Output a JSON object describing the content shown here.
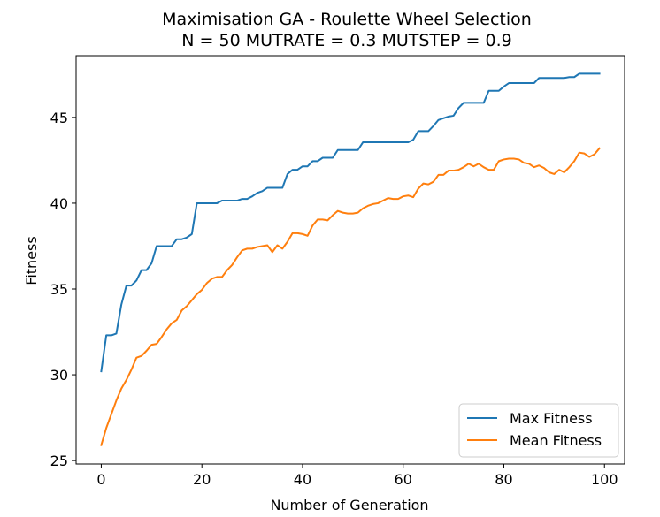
{
  "chart_data": {
    "type": "line",
    "title_line1": "Maximisation GA - Roulette Wheel Selection",
    "title_line2": "N = 50 MUTRATE = 0.3 MUTSTEP = 0.9",
    "xlabel": "Number of Generation",
    "ylabel": "Fitness",
    "xlim": [
      -5,
      104
    ],
    "ylim": [
      24.8,
      48.6
    ],
    "xticks": [
      0,
      20,
      40,
      60,
      80,
      100
    ],
    "yticks": [
      25,
      30,
      35,
      40,
      45
    ],
    "grid": false,
    "legend_position": "lower-right",
    "series": [
      {
        "name": "Max Fitness",
        "color": "#1f77b4",
        "x": [
          0,
          1,
          2,
          3,
          4,
          5,
          6,
          7,
          8,
          9,
          10,
          11,
          12,
          13,
          14,
          15,
          16,
          17,
          18,
          19,
          20,
          21,
          22,
          23,
          24,
          25,
          26,
          27,
          28,
          29,
          30,
          31,
          32,
          33,
          34,
          35,
          36,
          37,
          38,
          39,
          40,
          41,
          42,
          43,
          44,
          45,
          46,
          47,
          48,
          49,
          50,
          51,
          52,
          53,
          54,
          55,
          56,
          57,
          58,
          59,
          60,
          61,
          62,
          63,
          64,
          65,
          66,
          67,
          68,
          69,
          70,
          71,
          72,
          73,
          74,
          75,
          76,
          77,
          78,
          79,
          80,
          81,
          82,
          83,
          84,
          85,
          86,
          87,
          88,
          89,
          90,
          91,
          92,
          93,
          94,
          95,
          96,
          97,
          98,
          99
        ],
        "values": [
          30.2,
          32.3,
          32.3,
          32.4,
          34.1,
          35.2,
          35.2,
          35.5,
          36.1,
          36.1,
          36.5,
          37.5,
          37.5,
          37.5,
          37.5,
          37.9,
          37.9,
          38.0,
          38.2,
          40.0,
          40.0,
          40.0,
          40.0,
          40.0,
          40.15,
          40.15,
          40.15,
          40.15,
          40.25,
          40.25,
          40.4,
          40.6,
          40.7,
          40.9,
          40.9,
          40.9,
          40.9,
          41.7,
          41.95,
          41.95,
          42.15,
          42.15,
          42.45,
          42.45,
          42.65,
          42.65,
          42.65,
          43.1,
          43.1,
          43.1,
          43.1,
          43.1,
          43.55,
          43.55,
          43.55,
          43.55,
          43.55,
          43.55,
          43.55,
          43.55,
          43.55,
          43.55,
          43.7,
          44.2,
          44.2,
          44.2,
          44.5,
          44.85,
          44.95,
          45.05,
          45.1,
          45.55,
          45.85,
          45.85,
          45.85,
          45.85,
          45.85,
          46.55,
          46.55,
          46.55,
          46.8,
          47.0,
          47.0,
          47.0,
          47.0,
          47.0,
          47.0,
          47.3,
          47.3,
          47.3,
          47.3,
          47.3,
          47.3,
          47.35,
          47.35,
          47.55,
          47.55,
          47.55,
          47.55,
          47.55
        ]
      },
      {
        "name": "Mean Fitness",
        "color": "#ff7f0e",
        "x": [
          0,
          1,
          2,
          3,
          4,
          5,
          6,
          7,
          8,
          9,
          10,
          11,
          12,
          13,
          14,
          15,
          16,
          17,
          18,
          19,
          20,
          21,
          22,
          23,
          24,
          25,
          26,
          27,
          28,
          29,
          30,
          31,
          32,
          33,
          34,
          35,
          36,
          37,
          38,
          39,
          40,
          41,
          42,
          43,
          44,
          45,
          46,
          47,
          48,
          49,
          50,
          51,
          52,
          53,
          54,
          55,
          56,
          57,
          58,
          59,
          60,
          61,
          62,
          63,
          64,
          65,
          66,
          67,
          68,
          69,
          70,
          71,
          72,
          73,
          74,
          75,
          76,
          77,
          78,
          79,
          80,
          81,
          82,
          83,
          84,
          85,
          86,
          87,
          88,
          89,
          90,
          91,
          92,
          93,
          94,
          95,
          96,
          97,
          98,
          99
        ],
        "values": [
          25.9,
          26.9,
          27.7,
          28.5,
          29.2,
          29.7,
          30.3,
          31.0,
          31.1,
          31.4,
          31.75,
          31.8,
          32.2,
          32.65,
          33.0,
          33.2,
          33.75,
          34.0,
          34.35,
          34.7,
          34.95,
          35.35,
          35.6,
          35.7,
          35.7,
          36.1,
          36.4,
          36.85,
          37.25,
          37.35,
          37.35,
          37.45,
          37.5,
          37.55,
          37.15,
          37.55,
          37.35,
          37.75,
          38.25,
          38.25,
          38.2,
          38.1,
          38.7,
          39.05,
          39.05,
          39.0,
          39.3,
          39.55,
          39.45,
          39.4,
          39.4,
          39.45,
          39.7,
          39.85,
          39.95,
          40.0,
          40.15,
          40.3,
          40.25,
          40.25,
          40.4,
          40.45,
          40.35,
          40.85,
          41.15,
          41.1,
          41.25,
          41.65,
          41.65,
          41.9,
          41.9,
          41.95,
          42.1,
          42.3,
          42.15,
          42.3,
          42.1,
          41.95,
          41.95,
          42.45,
          42.55,
          42.6,
          42.6,
          42.55,
          42.35,
          42.3,
          42.1,
          42.2,
          42.05,
          41.8,
          41.7,
          41.95,
          41.8,
          42.1,
          42.45,
          42.95,
          42.9,
          42.7,
          42.85,
          43.2
        ]
      }
    ]
  }
}
